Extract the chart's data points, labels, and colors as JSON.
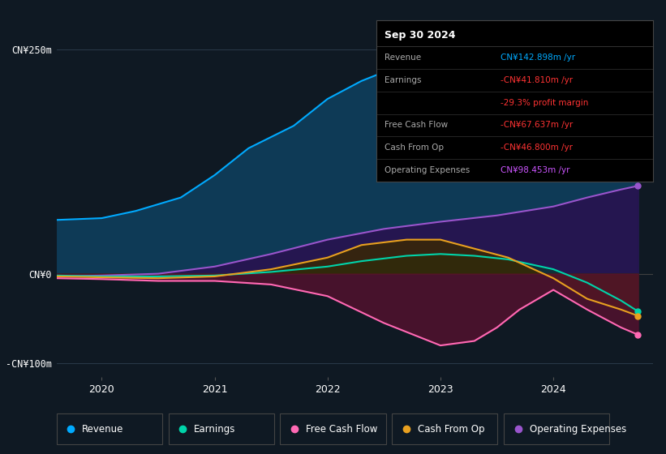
{
  "bg_color": "#0f1923",
  "chart_bg": "#0f1923",
  "infobox_bg": "#000000",
  "ylim": [
    -115,
    280
  ],
  "ytick_positions": [
    -100,
    0,
    250
  ],
  "ytick_labels": [
    "-CN¥100m",
    "CN¥0",
    "CN¥250m"
  ],
  "xticks": [
    2020,
    2021,
    2022,
    2023,
    2024
  ],
  "xlim_start": 2019.6,
  "xlim_end": 2024.88,
  "series": {
    "revenue": {
      "color": "#00aaff",
      "fill_color": "#0e3a56",
      "label": "Revenue",
      "x": [
        2019.6,
        2020.0,
        2020.3,
        2020.7,
        2021.0,
        2021.3,
        2021.7,
        2022.0,
        2022.3,
        2022.7,
        2023.0,
        2023.2,
        2023.4,
        2023.6,
        2023.75,
        2024.0,
        2024.2,
        2024.5,
        2024.75
      ],
      "y": [
        60,
        62,
        70,
        85,
        110,
        140,
        165,
        195,
        215,
        235,
        255,
        262,
        265,
        258,
        248,
        210,
        185,
        148,
        143
      ]
    },
    "earnings": {
      "color": "#00d4aa",
      "fill_color": "#0a3a30",
      "label": "Earnings",
      "x": [
        2019.6,
        2020.0,
        2020.5,
        2021.0,
        2021.5,
        2022.0,
        2022.3,
        2022.7,
        2023.0,
        2023.3,
        2023.6,
        2024.0,
        2024.3,
        2024.6,
        2024.75
      ],
      "y": [
        -2,
        -3,
        -3,
        -2,
        2,
        8,
        14,
        20,
        22,
        20,
        16,
        5,
        -10,
        -30,
        -42
      ]
    },
    "free_cash_flow": {
      "color": "#ff69b4",
      "fill_color": "#5a1030",
      "label": "Free Cash Flow",
      "x": [
        2019.6,
        2020.0,
        2020.5,
        2021.0,
        2021.5,
        2022.0,
        2022.5,
        2023.0,
        2023.3,
        2023.5,
        2023.7,
        2024.0,
        2024.3,
        2024.6,
        2024.75
      ],
      "y": [
        -5,
        -6,
        -8,
        -8,
        -12,
        -25,
        -55,
        -80,
        -75,
        -60,
        -40,
        -18,
        -40,
        -60,
        -68
      ]
    },
    "cash_from_op": {
      "color": "#e8a020",
      "fill_color": "#3a2800",
      "label": "Cash From Op",
      "x": [
        2019.6,
        2020.0,
        2020.5,
        2021.0,
        2021.5,
        2022.0,
        2022.3,
        2022.7,
        2023.0,
        2023.3,
        2023.6,
        2024.0,
        2024.3,
        2024.6,
        2024.75
      ],
      "y": [
        -3,
        -4,
        -5,
        -3,
        5,
        18,
        32,
        38,
        38,
        28,
        18,
        -5,
        -28,
        -40,
        -47
      ]
    },
    "operating_expenses": {
      "color": "#9955cc",
      "fill_color": "#2a1050",
      "label": "Operating Expenses",
      "x": [
        2019.6,
        2020.0,
        2020.5,
        2021.0,
        2021.5,
        2022.0,
        2022.5,
        2023.0,
        2023.5,
        2024.0,
        2024.3,
        2024.6,
        2024.75
      ],
      "y": [
        -3,
        -2,
        0,
        8,
        22,
        38,
        50,
        58,
        65,
        75,
        85,
        94,
        98
      ]
    }
  },
  "legend": [
    {
      "label": "Revenue",
      "color": "#00aaff"
    },
    {
      "label": "Earnings",
      "color": "#00d4aa"
    },
    {
      "label": "Free Cash Flow",
      "color": "#ff69b4"
    },
    {
      "label": "Cash From Op",
      "color": "#e8a020"
    },
    {
      "label": "Operating Expenses",
      "color": "#9955cc"
    }
  ],
  "infobox": {
    "title": "Sep 30 2024",
    "rows": [
      {
        "label": "Revenue",
        "value": "CN¥142.898m /yr",
        "value_color": "#00aaff"
      },
      {
        "label": "Earnings",
        "value": "-CN¥41.810m /yr",
        "value_color": "#ff3333"
      },
      {
        "label": "",
        "value": "-29.3% profit margin",
        "value_color": "#ff3333"
      },
      {
        "label": "Free Cash Flow",
        "value": "-CN¥67.637m /yr",
        "value_color": "#ff3333"
      },
      {
        "label": "Cash From Op",
        "value": "-CN¥46.800m /yr",
        "value_color": "#ff3333"
      },
      {
        "label": "Operating Expenses",
        "value": "CN¥98.453m /yr",
        "value_color": "#cc55ff"
      }
    ]
  }
}
